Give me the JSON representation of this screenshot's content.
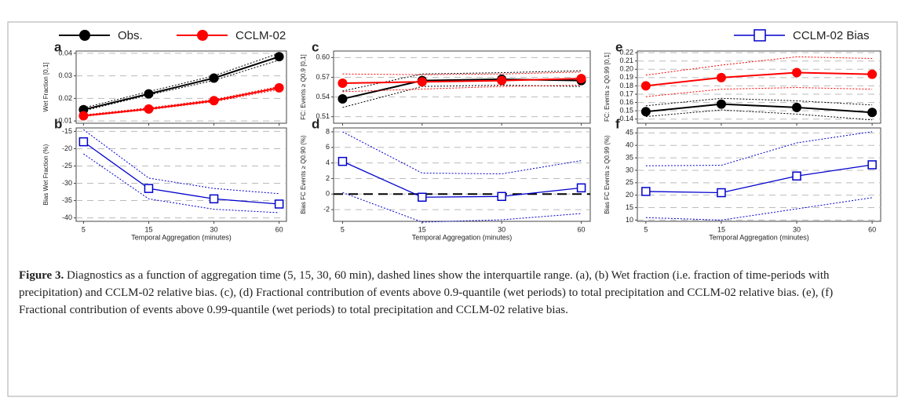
{
  "chart_data": [
    {
      "type": "line",
      "panel_label": "a",
      "y_label": "Wet Fraction [0,1]",
      "marker": "circle",
      "categories": [
        "5",
        "15",
        "30",
        "60"
      ],
      "ylim": [
        0.009,
        0.041
      ],
      "yticks": [
        0.01,
        0.02,
        0.03,
        0.04
      ],
      "grid": true,
      "series": [
        {
          "name": "Obs.",
          "color": "#000000",
          "values": [
            0.015,
            0.022,
            0.029,
            0.0385
          ],
          "lower": [
            0.0145,
            0.0215,
            0.028,
            0.037
          ],
          "upper": [
            0.0158,
            0.023,
            0.03,
            0.04
          ]
        },
        {
          "name": "CCLM-02",
          "color": "#ff0000",
          "values": [
            0.0123,
            0.0153,
            0.019,
            0.0247
          ],
          "lower": [
            0.012,
            0.015,
            0.0185,
            0.024
          ],
          "upper": [
            0.0127,
            0.0158,
            0.0195,
            0.0253
          ]
        }
      ]
    },
    {
      "type": "line",
      "panel_label": "b",
      "y_label": "Bias Wet Fraction (%)",
      "x_label": "Temporal Aggregation (minutes)",
      "marker": "square",
      "categories": [
        "5",
        "15",
        "30",
        "60"
      ],
      "ylim": [
        -41,
        -14
      ],
      "yticks": [
        -15,
        -20,
        -25,
        -30,
        -35,
        -40
      ],
      "grid": true,
      "series": [
        {
          "name": "CCLM-02 Bias",
          "color": "#0000cc",
          "values": [
            -18,
            -31.5,
            -34.5,
            -36
          ],
          "lower": [
            -21.5,
            -34.5,
            -37.5,
            -38.5
          ],
          "upper": [
            -14.5,
            -28.5,
            -31.5,
            -33
          ]
        }
      ]
    },
    {
      "type": "line",
      "panel_label": "c",
      "y_label": "FC: Events ≥ Q0.9 [0,1]",
      "marker": "circle",
      "categories": [
        "5",
        "15",
        "30",
        "60"
      ],
      "ylim": [
        0.5,
        0.61
      ],
      "yticks": [
        {
          "value": 0.51,
          "label": "0.51"
        },
        {
          "value": 0.54,
          "label": "0.54"
        },
        {
          "value": 0.57,
          "label": "0.57"
        },
        {
          "value": 0.6,
          "label": "0.60"
        }
      ],
      "grid": true,
      "series": [
        {
          "name": "Obs.",
          "color": "#000000",
          "values": [
            0.537,
            0.565,
            0.567,
            0.565
          ],
          "lower": [
            0.524,
            0.556,
            0.558,
            0.556
          ],
          "upper": [
            0.549,
            0.575,
            0.577,
            0.58
          ]
        },
        {
          "name": "CCLM-02",
          "color": "#ff0000",
          "values": [
            0.561,
            0.563,
            0.565,
            0.568
          ],
          "lower": [
            0.548,
            0.552,
            0.556,
            0.558
          ],
          "upper": [
            0.575,
            0.574,
            0.575,
            0.578
          ]
        }
      ]
    },
    {
      "type": "line",
      "panel_label": "d",
      "y_label": "Bias FC Events ≥ Q0.90 (%)",
      "x_label": "Temporal Aggregation (minutes)",
      "marker": "square",
      "categories": [
        "5",
        "15",
        "30",
        "60"
      ],
      "ylim": [
        -3.5,
        8.5
      ],
      "yticks": [
        -2,
        0,
        2,
        4,
        6,
        8
      ],
      "grid": true,
      "ref_line": 0,
      "series": [
        {
          "name": "CCLM-02 Bias",
          "color": "#0000cc",
          "values": [
            4.2,
            -0.4,
            -0.3,
            0.8
          ],
          "lower": [
            0.2,
            -3.6,
            -3.3,
            -2.5
          ],
          "upper": [
            8,
            2.7,
            2.6,
            4.3
          ]
        }
      ]
    },
    {
      "type": "line",
      "panel_label": "e",
      "y_label": "FC: Events ≥ Q0.99 [0,1]",
      "marker": "circle",
      "categories": [
        "5",
        "15",
        "30",
        "60"
      ],
      "ylim": [
        0.135,
        0.222
      ],
      "yticks": [
        0.14,
        0.15,
        0.16,
        0.17,
        0.18,
        0.19,
        {
          "value": 0.2,
          "label": "0.20"
        },
        0.21,
        0.22
      ],
      "grid": true,
      "series": [
        {
          "name": "Obs.",
          "color": "#000000",
          "values": [
            0.149,
            0.158,
            0.154,
            0.148
          ],
          "lower": [
            0.143,
            0.151,
            0.146,
            0.139
          ],
          "upper": [
            0.156,
            0.165,
            0.162,
            0.157
          ]
        },
        {
          "name": "CCLM-02",
          "color": "#ff0000",
          "values": [
            0.18,
            0.19,
            0.196,
            0.194
          ],
          "lower": [
            0.167,
            0.176,
            0.178,
            0.176
          ],
          "upper": [
            0.193,
            0.205,
            0.215,
            0.213
          ]
        }
      ]
    },
    {
      "type": "line",
      "panel_label": "f",
      "y_label": "Bias FC Events ≥ Q0.99 (%)",
      "x_label": "Temporal Aggregation (minutes)",
      "marker": "square",
      "categories": [
        "5",
        "15",
        "30",
        "60"
      ],
      "ylim": [
        9.5,
        47
      ],
      "yticks": [
        10,
        15,
        20,
        25,
        30,
        35,
        40,
        45
      ],
      "grid": true,
      "series": [
        {
          "name": "CCLM-02 Bias",
          "color": "#0000cc",
          "values": [
            21.5,
            21,
            27.7,
            32.2
          ],
          "lower": [
            11,
            10,
            14.5,
            19
          ],
          "upper": [
            31.8,
            32,
            41,
            45.5
          ]
        }
      ]
    }
  ],
  "caption": {
    "label": "Figure 3.",
    "text": "Diagnostics as a function of aggregation time (5, 15, 30, 60 min), dashed lines show the interquartile range. (a), (b) Wet fraction (i.e. fraction of time-periods with precipitation) and CCLM-02 relative bias. (c), (d) Fractional contribution of events above 0.9-quantile (wet periods) to total precipitation and CCLM-02 relative bias. (e), (f) Fractional contribution of events above 0.99-quantile (wet periods) to total precipitation and CCLM-02 relative bias."
  }
}
